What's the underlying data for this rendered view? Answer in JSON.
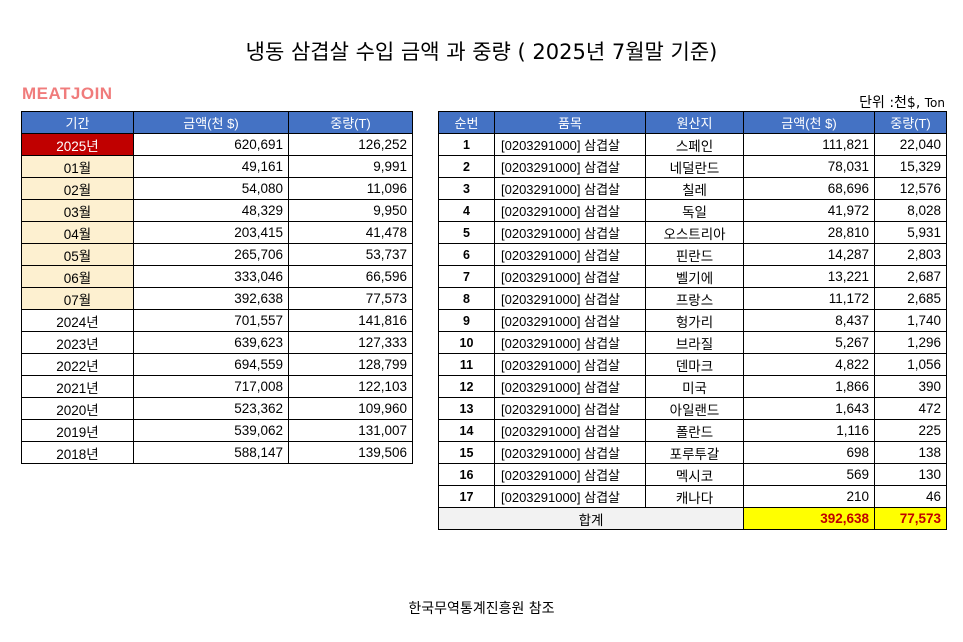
{
  "title": "냉동  삼겹살  수입 금액 과 중량 ( 2025년 7월말 기준)",
  "logo": "MEATJOIN",
  "unit_label": "단위 :천$,",
  "unit_suffix": "Ton",
  "source": "한국무역통계진흥원 참조",
  "period_table": {
    "headers": [
      "기간",
      "금액(천 $)",
      "중량(T)"
    ],
    "rows": [
      {
        "period": "2025년",
        "amount": "620,691",
        "weight": "126,252",
        "kind": "current"
      },
      {
        "period": "01월",
        "amount": "49,161",
        "weight": "9,991",
        "kind": "month"
      },
      {
        "period": "02월",
        "amount": "54,080",
        "weight": "11,096",
        "kind": "month"
      },
      {
        "period": "03월",
        "amount": "48,329",
        "weight": "9,950",
        "kind": "month"
      },
      {
        "period": "04월",
        "amount": "203,415",
        "weight": "41,478",
        "kind": "month"
      },
      {
        "period": "05월",
        "amount": "265,706",
        "weight": "53,737",
        "kind": "month"
      },
      {
        "period": "06월",
        "amount": "333,046",
        "weight": "66,596",
        "kind": "month"
      },
      {
        "period": "07월",
        "amount": "392,638",
        "weight": "77,573",
        "kind": "month"
      },
      {
        "period": "2024년",
        "amount": "701,557",
        "weight": "141,816",
        "kind": "year"
      },
      {
        "period": "2023년",
        "amount": "639,623",
        "weight": "127,333",
        "kind": "year"
      },
      {
        "period": "2022년",
        "amount": "694,559",
        "weight": "128,799",
        "kind": "year"
      },
      {
        "period": "2021년",
        "amount": "717,008",
        "weight": "122,103",
        "kind": "year"
      },
      {
        "period": "2020년",
        "amount": "523,362",
        "weight": "109,960",
        "kind": "year"
      },
      {
        "period": "2019년",
        "amount": "539,062",
        "weight": "131,007",
        "kind": "year"
      },
      {
        "period": "2018년",
        "amount": "588,147",
        "weight": "139,506",
        "kind": "year"
      }
    ]
  },
  "country_table": {
    "headers": [
      "순번",
      "품목",
      "원산지",
      "금액(천 $)",
      "중량(T)"
    ],
    "rows": [
      {
        "rank": "1",
        "item": "[0203291000] 삼겹살",
        "origin": "스페인",
        "amount": "111,821",
        "weight": "22,040"
      },
      {
        "rank": "2",
        "item": "[0203291000] 삼겹살",
        "origin": "네덜란드",
        "amount": "78,031",
        "weight": "15,329"
      },
      {
        "rank": "3",
        "item": "[0203291000] 삼겹살",
        "origin": "칠레",
        "amount": "68,696",
        "weight": "12,576"
      },
      {
        "rank": "4",
        "item": "[0203291000] 삼겹살",
        "origin": "독일",
        "amount": "41,972",
        "weight": "8,028"
      },
      {
        "rank": "5",
        "item": "[0203291000] 삼겹살",
        "origin": "오스트리아",
        "amount": "28,810",
        "weight": "5,931"
      },
      {
        "rank": "6",
        "item": "[0203291000] 삼겹살",
        "origin": "핀란드",
        "amount": "14,287",
        "weight": "2,803"
      },
      {
        "rank": "7",
        "item": "[0203291000] 삼겹살",
        "origin": "벨기에",
        "amount": "13,221",
        "weight": "2,687"
      },
      {
        "rank": "8",
        "item": "[0203291000] 삼겹살",
        "origin": "프랑스",
        "amount": "11,172",
        "weight": "2,685"
      },
      {
        "rank": "9",
        "item": "[0203291000] 삼겹살",
        "origin": "헝가리",
        "amount": "8,437",
        "weight": "1,740"
      },
      {
        "rank": "10",
        "item": "[0203291000] 삼겹살",
        "origin": "브라질",
        "amount": "5,267",
        "weight": "1,296"
      },
      {
        "rank": "11",
        "item": "[0203291000] 삼겹살",
        "origin": "덴마크",
        "amount": "4,822",
        "weight": "1,056"
      },
      {
        "rank": "12",
        "item": "[0203291000] 삼겹살",
        "origin": "미국",
        "amount": "1,866",
        "weight": "390"
      },
      {
        "rank": "13",
        "item": "[0203291000] 삼겹살",
        "origin": "아일랜드",
        "amount": "1,643",
        "weight": "472"
      },
      {
        "rank": "14",
        "item": "[0203291000] 삼겹살",
        "origin": "폴란드",
        "amount": "1,116",
        "weight": "225"
      },
      {
        "rank": "15",
        "item": "[0203291000] 삼겹살",
        "origin": "포루투갈",
        "amount": "698",
        "weight": "138"
      },
      {
        "rank": "16",
        "item": "[0203291000] 삼겹살",
        "origin": "멕시코",
        "amount": "569",
        "weight": "130"
      },
      {
        "rank": "17",
        "item": "[0203291000] 삼겹살",
        "origin": "캐나다",
        "amount": "210",
        "weight": "46"
      }
    ],
    "total": {
      "label": "합계",
      "amount": "392,638",
      "weight": "77,573"
    }
  },
  "colors": {
    "header_bg": "#4472c4",
    "current_year_bg": "#c00000",
    "month_bg": "#fdf0d0",
    "total_bg": "#ffff00",
    "total_text": "#c00000",
    "logo": "#f07c7c"
  }
}
